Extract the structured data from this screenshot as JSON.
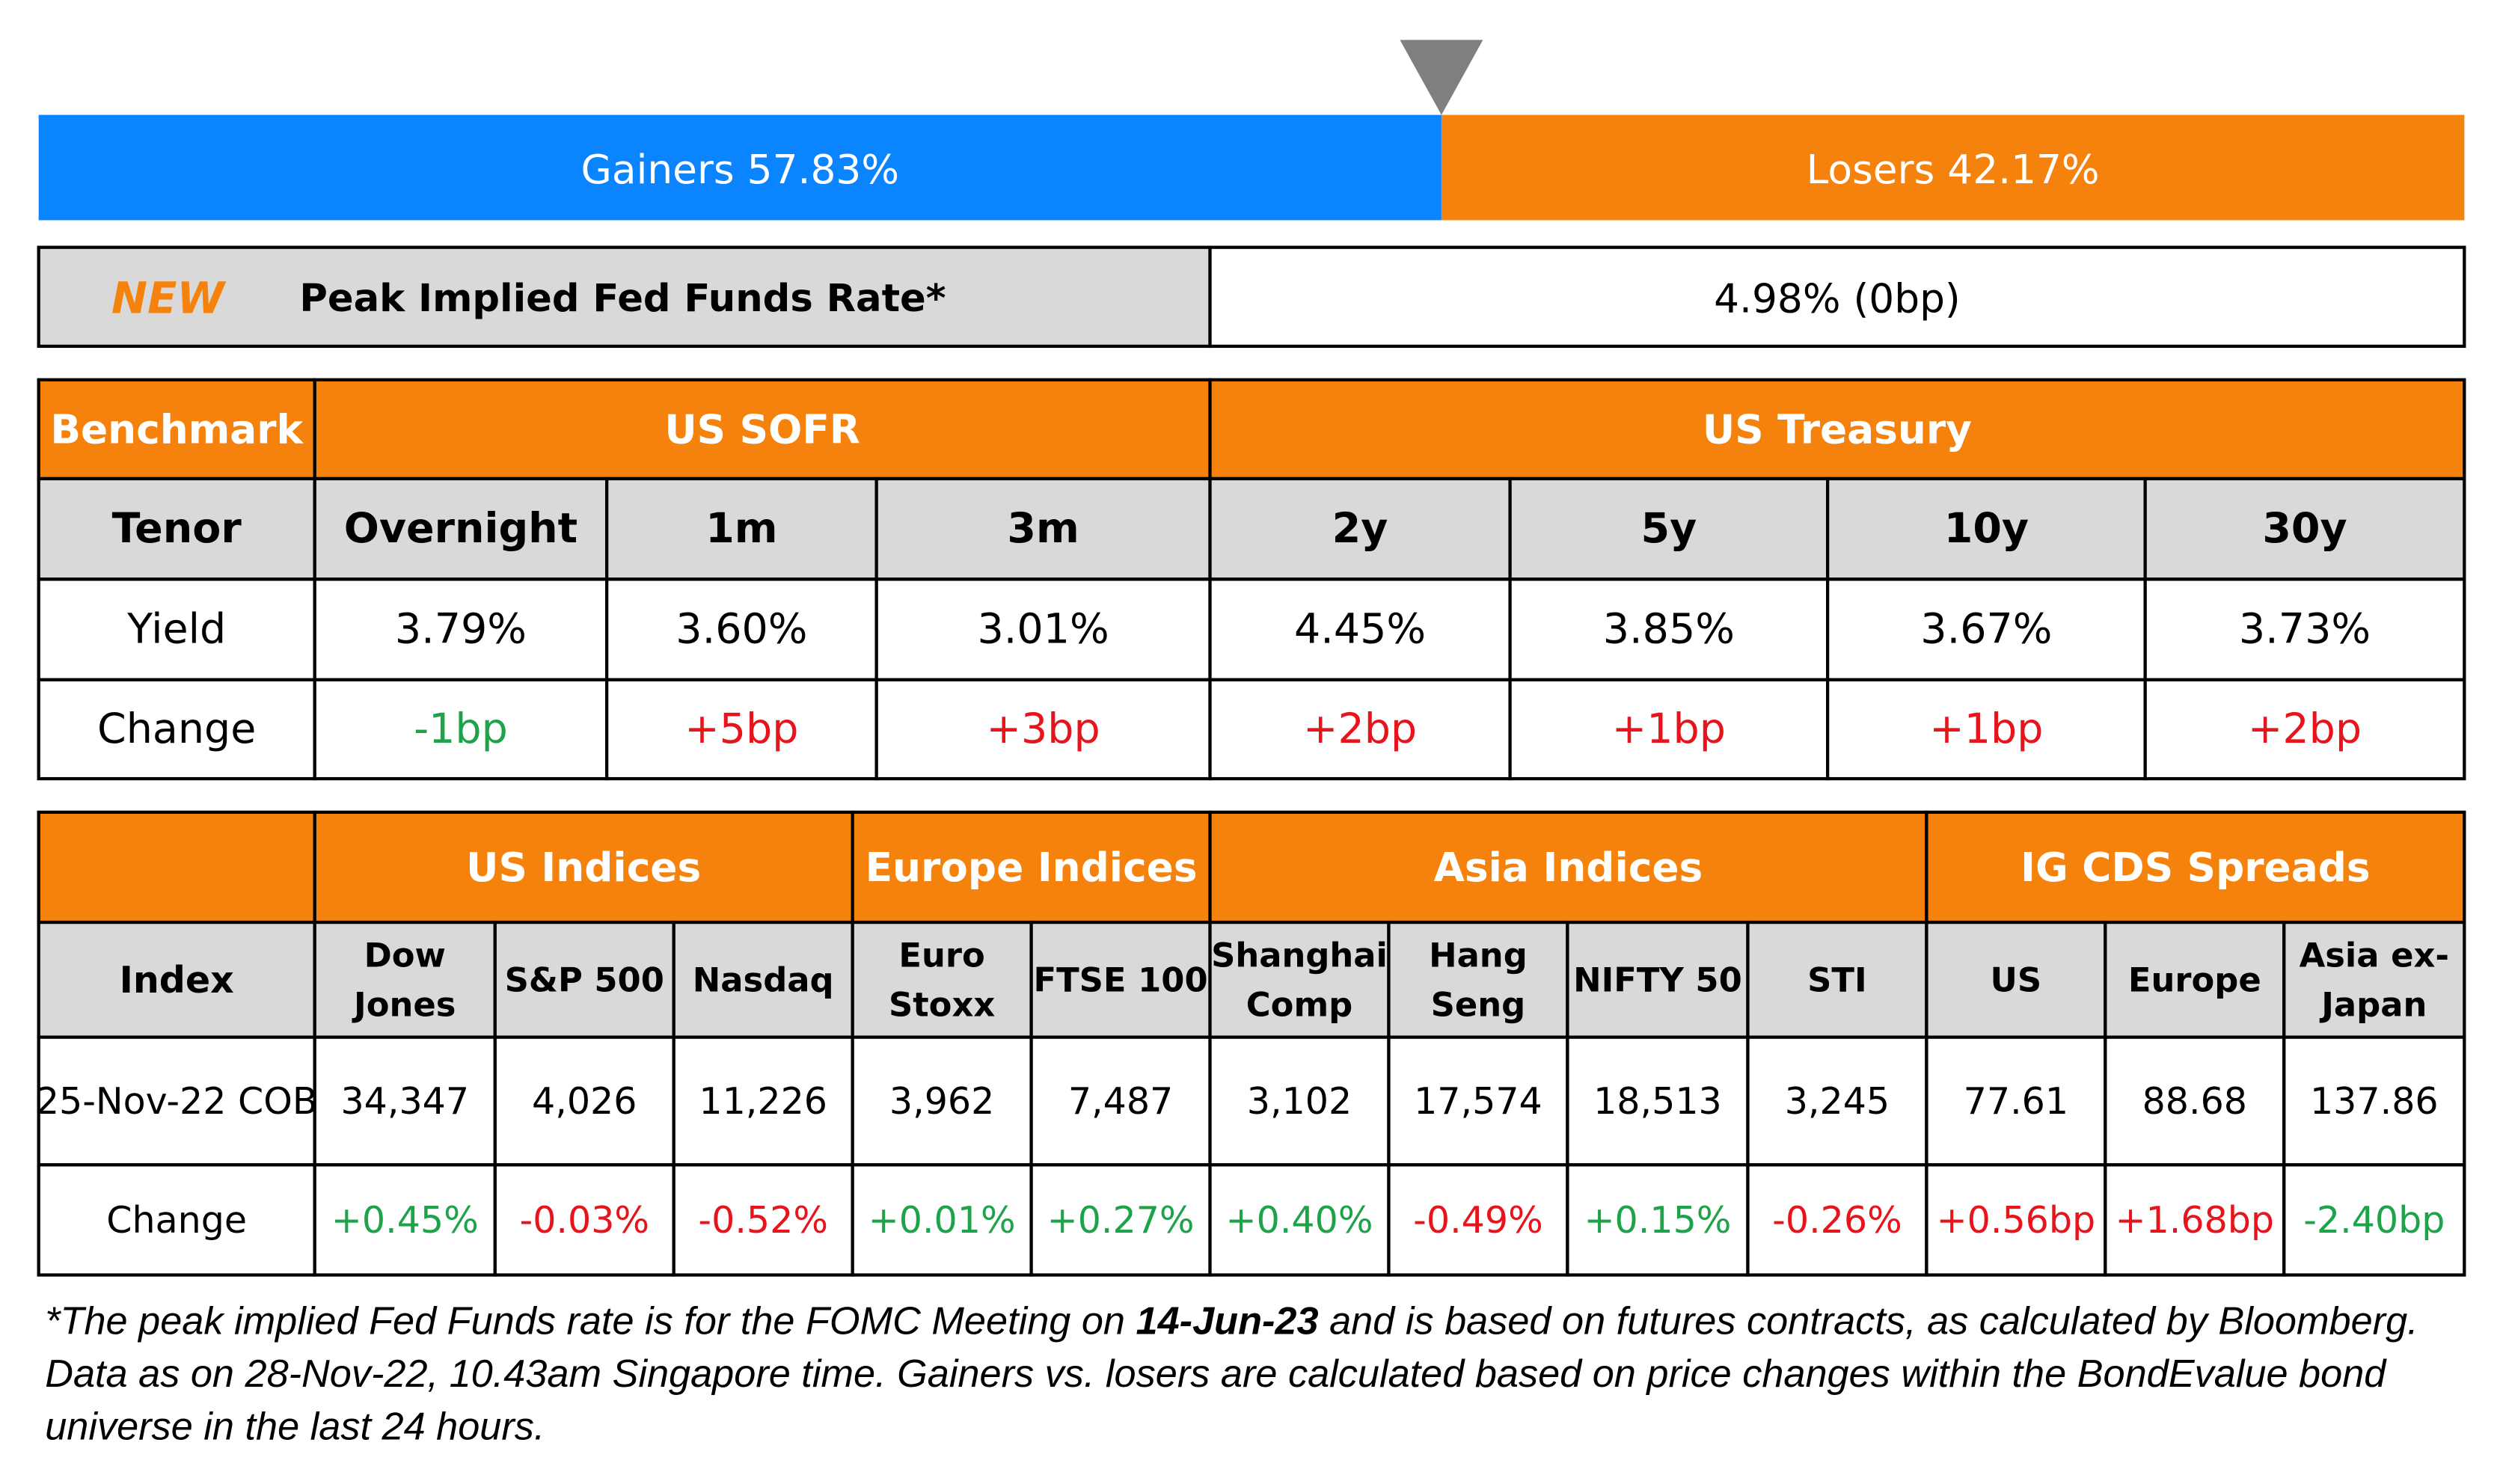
{
  "breadth": {
    "gainers": {
      "label": "Gainers",
      "value": 57.83,
      "value_label": "57.83%",
      "color": "#0a84ff"
    },
    "losers": {
      "label": "Losers",
      "value": 42.17,
      "value_label": "42.17%",
      "color": "#f5820d"
    }
  },
  "fed_funds": {
    "tag": "NEW",
    "label": "Peak Implied Fed Funds Rate*",
    "value": "4.98% (0bp)"
  },
  "rates_table": {
    "group_label": "Benchmark",
    "groups": [
      "US SOFR",
      "US Treasury"
    ],
    "header_label": "Tenor",
    "columns": [
      "Overnight",
      "1m",
      "3m",
      "2y",
      "5y",
      "10y",
      "30y"
    ],
    "rows": [
      {
        "label": "Yield",
        "cells": [
          {
            "text": "3.79%"
          },
          {
            "text": "3.60%"
          },
          {
            "text": "3.01%"
          },
          {
            "text": "4.45%"
          },
          {
            "text": "3.85%"
          },
          {
            "text": "3.67%"
          },
          {
            "text": "3.73%"
          }
        ]
      },
      {
        "label": "Change",
        "cells": [
          {
            "text": "-1bp",
            "color": "#1fa34a"
          },
          {
            "text": "+5bp",
            "color": "#e8141c"
          },
          {
            "text": "+3bp",
            "color": "#e8141c"
          },
          {
            "text": "+2bp",
            "color": "#e8141c"
          },
          {
            "text": "+1bp",
            "color": "#e8141c"
          },
          {
            "text": "+1bp",
            "color": "#e8141c"
          },
          {
            "text": "+2bp",
            "color": "#e8141c"
          }
        ]
      }
    ]
  },
  "index_table": {
    "groups": [
      "US Indices",
      "Europe Indices",
      "Asia Indices",
      "IG CDS Spreads"
    ],
    "header_label": "Index",
    "columns": [
      [
        "Dow",
        "Jones"
      ],
      [
        "S&P 500"
      ],
      [
        "Nasdaq"
      ],
      [
        "Euro",
        "Stoxx"
      ],
      [
        "FTSE 100"
      ],
      [
        "Shanghai",
        "Comp"
      ],
      [
        "Hang",
        "Seng"
      ],
      [
        "NIFTY 50"
      ],
      [
        "STI"
      ],
      [
        "US"
      ],
      [
        "Europe"
      ],
      [
        "Asia ex-",
        "Japan"
      ]
    ],
    "rows": [
      {
        "label": "25-Nov-22 COB",
        "cells": [
          {
            "text": "34,347"
          },
          {
            "text": "4,026"
          },
          {
            "text": "11,226"
          },
          {
            "text": "3,962"
          },
          {
            "text": "7,487"
          },
          {
            "text": "3,102"
          },
          {
            "text": "17,574"
          },
          {
            "text": "18,513"
          },
          {
            "text": "3,245"
          },
          {
            "text": "77.61"
          },
          {
            "text": "88.68"
          },
          {
            "text": "137.86"
          }
        ]
      },
      {
        "label": "Change",
        "cells": [
          {
            "text": "+0.45%",
            "color": "#1fa34a"
          },
          {
            "text": "-0.03%",
            "color": "#e8141c"
          },
          {
            "text": "-0.52%",
            "color": "#e8141c"
          },
          {
            "text": "+0.01%",
            "color": "#1fa34a"
          },
          {
            "text": "+0.27%",
            "color": "#1fa34a"
          },
          {
            "text": "+0.40%",
            "color": "#1fa34a"
          },
          {
            "text": "-0.49%",
            "color": "#e8141c"
          },
          {
            "text": "+0.15%",
            "color": "#1fa34a"
          },
          {
            "text": "-0.26%",
            "color": "#e8141c"
          },
          {
            "text": "+0.56bp",
            "color": "#e8141c"
          },
          {
            "text": "+1.68bp",
            "color": "#e8141c"
          },
          {
            "text": "-2.40bp",
            "color": "#1fa34a"
          }
        ]
      }
    ]
  },
  "footnote": [
    "*The peak implied Fed Funds rate is for the FOMC Meeting on ",
    "14-Jun-23",
    " and is based on futures contracts, as calculated by Bloomberg. Data as on 28-Nov-22, 10.43am Singapore time. Gainers vs. losers are calculated based on price changes within the BondEvalue bond universe in the last 24 hours."
  ]
}
